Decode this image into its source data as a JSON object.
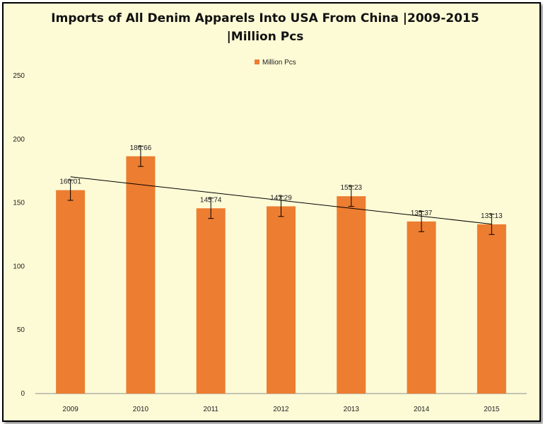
{
  "chart_data": {
    "type": "bar",
    "title": "Imports of All Denim Apparels Into USA From China |2009-2015 |Million Pcs",
    "categories": [
      "2009",
      "2010",
      "2011",
      "2012",
      "2013",
      "2014",
      "2015"
    ],
    "series": [
      {
        "name": "Million Pcs",
        "values": [
          160.01,
          186.66,
          145.74,
          147.29,
          155.23,
          135.37,
          133.13
        ],
        "labels": [
          "160.01",
          "186.66",
          "145.74",
          "147.29",
          "155.23",
          "135.37",
          "133.13"
        ],
        "error": [
          8,
          8,
          8,
          8,
          8,
          8,
          8
        ],
        "color": "#ed7d31"
      }
    ],
    "trendline": {
      "type": "linear",
      "color": "#000000"
    },
    "ylim": [
      0,
      250
    ],
    "yticks": [
      "0",
      "50",
      "100",
      "150",
      "200",
      "250"
    ],
    "ytick_values": [
      0,
      50,
      100,
      150,
      200,
      250
    ],
    "legend": "top-center",
    "grid": false,
    "background": "#fdfbd6"
  }
}
